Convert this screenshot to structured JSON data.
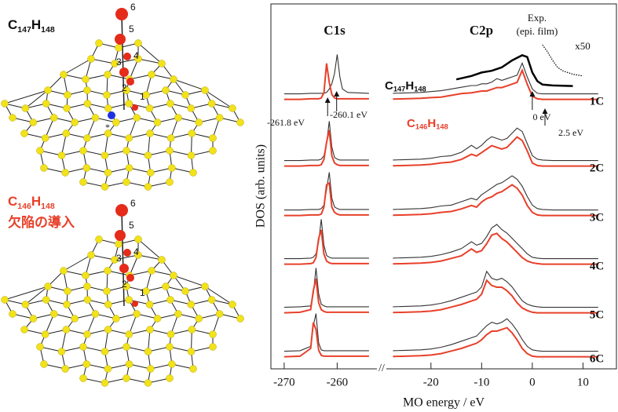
{
  "molecules": {
    "top": {
      "formula": {
        "element1": "C",
        "count1": "147",
        "element2": "H",
        "count2": "148"
      },
      "atoms": [
        1,
        2,
        3,
        4,
        5,
        6
      ],
      "defect": "*"
    },
    "bottom": {
      "formula": {
        "element1": "C",
        "count1": "146",
        "element2": "H",
        "count2": "148"
      },
      "note": "欠陥の導入",
      "atoms": [
        1,
        2,
        3,
        4,
        5,
        6
      ]
    }
  },
  "chart_data": {
    "type": "line",
    "ylabel": "DOS (arb. units)",
    "xlabel": "MO energy / eV",
    "axis_break": "//",
    "peak_labels": [
      "C1s",
      "C2p"
    ],
    "series_labels": [
      {
        "element1": "C",
        "count1": "147",
        "element2": "H",
        "count2": "148",
        "color": "#111111"
      },
      {
        "element1": "C",
        "count1": "146",
        "element2": "H",
        "count2": "148",
        "color": "#e8402a"
      }
    ],
    "x_segments": [
      {
        "xlim": [
          -272.5,
          -252.5
        ],
        "xticks": [
          -270,
          -260
        ],
        "x": [
          -270,
          -267,
          -265,
          -264.5,
          -264,
          -263.5,
          -263,
          -262.5,
          -262,
          -261.5,
          -261,
          -260.5,
          -260,
          -259.5,
          -259,
          -258,
          -254
        ]
      },
      {
        "xlim": [
          -28.8,
          16.6
        ],
        "xticks": [
          -20,
          -10,
          0,
          10
        ],
        "x": [
          -27.5,
          -22,
          -20,
          -18,
          -16,
          -14,
          -12,
          -11,
          -10,
          -9,
          -8,
          -7,
          -6,
          -5,
          -4,
          -3,
          -2,
          -1,
          0,
          1,
          2,
          4,
          13
        ]
      }
    ],
    "energy_markers": [
      {
        "value": -261.8,
        "label": "-261.8 eV"
      },
      {
        "value": -260.1,
        "label": "-260.1 eV"
      },
      {
        "value": 0,
        "label": "0 eV"
      },
      {
        "value": 2.5,
        "label": "2.5 eV"
      }
    ],
    "experiment": {
      "label": [
        "Exp.",
        "(epi. film)"
      ],
      "scale_label": "x50",
      "color": "#000000",
      "x": [
        -15,
        -12,
        -10,
        -8,
        -6,
        -4,
        -2,
        -1,
        0,
        1,
        2,
        4,
        8
      ],
      "values": [
        0.4,
        0.6,
        0.8,
        0.9,
        1.1,
        1.5,
        1.8,
        1.7,
        0.8,
        0.3,
        0.1,
        0.05,
        0.02
      ],
      "scaled_x": [
        2,
        3,
        4,
        5,
        6,
        8,
        10
      ],
      "scaled_values": [
        2.4,
        2.0,
        1.5,
        1.1,
        0.9,
        0.7,
        0.6
      ]
    },
    "panels": [
      {
        "label": "1C",
        "series": [
          {
            "color": "#333333",
            "c1s": [
              0.02,
              0.02,
              0.05,
              0.05,
              0.05,
              0.05,
              0.05,
              0.05,
              0.1,
              0.3,
              0.6,
              1.2,
              2.3,
              1.0,
              0.3,
              0.1,
              0.05
            ],
            "c2p": [
              0.05,
              0.1,
              0.15,
              0.2,
              0.3,
              0.4,
              0.5,
              0.5,
              0.6,
              0.6,
              0.7,
              0.9,
              0.8,
              0.9,
              1.0,
              1.1,
              1.8,
              1.0,
              0.3,
              0.05,
              0.02,
              0.02,
              0.02
            ]
          },
          {
            "color": "#e8402a",
            "c1s": [
              0.02,
              0.02,
              0.05,
              0.05,
              0.05,
              0.05,
              0.1,
              0.4,
              2.1,
              1.0,
              0.3,
              0.1,
              0.05,
              0.05,
              0.05,
              0.05,
              0.05
            ],
            "c2p": [
              0.03,
              0.08,
              0.12,
              0.15,
              0.25,
              0.35,
              0.4,
              0.45,
              0.5,
              0.5,
              0.6,
              0.7,
              0.7,
              0.8,
              0.9,
              1.0,
              1.7,
              0.9,
              0.2,
              0.05,
              0.02,
              0.02,
              0.02
            ]
          }
        ]
      },
      {
        "label": "2C",
        "series": [
          {
            "color": "#333333",
            "c1s": [
              0.02,
              0.02,
              0.05,
              0.05,
              0.05,
              0.05,
              0.1,
              0.3,
              1.0,
              2.3,
              0.8,
              0.2,
              0.1,
              0.05,
              0.05,
              0.05,
              0.05
            ],
            "c2p": [
              0.05,
              0.1,
              0.15,
              0.25,
              0.3,
              0.5,
              0.9,
              0.7,
              0.9,
              1.2,
              1.4,
              1.3,
              1.2,
              1.3,
              1.6,
              1.9,
              1.7,
              1.0,
              0.3,
              0.1,
              0.05,
              0.02,
              0.02
            ]
          },
          {
            "color": "#e8402a",
            "c1s": [
              0.02,
              0.02,
              0.05,
              0.05,
              0.05,
              0.05,
              0.1,
              0.4,
              1.4,
              2.1,
              0.6,
              0.2,
              0.1,
              0.05,
              0.05,
              0.05,
              0.05
            ],
            "c2p": [
              0.03,
              0.08,
              0.12,
              0.2,
              0.25,
              0.4,
              0.7,
              0.6,
              0.8,
              1.0,
              1.2,
              1.1,
              1.0,
              1.1,
              1.4,
              1.7,
              1.5,
              0.9,
              0.2,
              0.05,
              0.02,
              0.02,
              0.02
            ]
          }
        ]
      },
      {
        "label": "3C",
        "series": [
          {
            "color": "#333333",
            "c1s": [
              0.02,
              0.02,
              0.05,
              0.05,
              0.05,
              0.05,
              0.1,
              0.3,
              1.2,
              2.2,
              0.7,
              0.2,
              0.1,
              0.05,
              0.05,
              0.05,
              0.05
            ],
            "c2p": [
              0.05,
              0.1,
              0.15,
              0.25,
              0.3,
              0.5,
              0.7,
              0.6,
              0.9,
              1.1,
              1.3,
              1.5,
              1.6,
              1.8,
              2.0,
              1.8,
              1.4,
              0.8,
              0.3,
              0.1,
              0.05,
              0.02,
              0.02
            ]
          },
          {
            "color": "#e8402a",
            "c1s": [
              0.02,
              0.02,
              0.05,
              0.05,
              0.05,
              0.05,
              0.1,
              0.5,
              1.8,
              1.9,
              0.5,
              0.2,
              0.1,
              0.05,
              0.05,
              0.05,
              0.05
            ],
            "c2p": [
              0.03,
              0.08,
              0.12,
              0.2,
              0.25,
              0.4,
              0.6,
              0.5,
              0.8,
              1.0,
              1.1,
              1.3,
              1.4,
              1.6,
              1.8,
              1.6,
              1.2,
              0.6,
              0.2,
              0.05,
              0.02,
              0.02,
              0.02
            ]
          }
        ]
      },
      {
        "label": "4C",
        "series": [
          {
            "color": "#333333",
            "c1s": [
              0.02,
              0.02,
              0.05,
              0.1,
              0.3,
              1.0,
              2.3,
              0.8,
              0.2,
              0.1,
              0.05,
              0.05,
              0.05,
              0.05,
              0.05,
              0.05,
              0.05
            ],
            "c2p": [
              0.05,
              0.1,
              0.15,
              0.25,
              0.4,
              0.6,
              1.0,
              0.8,
              0.9,
              1.3,
              1.8,
              2.0,
              1.7,
              1.5,
              1.2,
              0.9,
              0.6,
              0.3,
              0.1,
              0.05,
              0.02,
              0.02,
              0.02
            ]
          },
          {
            "color": "#e8402a",
            "c1s": [
              0.02,
              0.02,
              0.05,
              0.1,
              0.4,
              1.5,
              2.0,
              0.6,
              0.2,
              0.1,
              0.05,
              0.05,
              0.05,
              0.05,
              0.05,
              0.05,
              0.05
            ],
            "c2p": [
              0.03,
              0.08,
              0.12,
              0.2,
              0.35,
              0.5,
              0.9,
              0.7,
              0.8,
              1.2,
              1.7,
              1.8,
              1.5,
              1.3,
              1.0,
              0.7,
              0.4,
              0.2,
              0.1,
              0.05,
              0.02,
              0.02,
              0.02
            ]
          }
        ]
      },
      {
        "label": "5C",
        "series": [
          {
            "color": "#333333",
            "c1s": [
              0.02,
              0.05,
              0.1,
              0.8,
              2.3,
              0.8,
              0.2,
              0.1,
              0.05,
              0.05,
              0.05,
              0.05,
              0.05,
              0.05,
              0.05,
              0.05,
              0.05
            ],
            "c2p": [
              0.05,
              0.1,
              0.15,
              0.25,
              0.4,
              0.6,
              0.8,
              0.9,
              1.2,
              2.1,
              1.7,
              1.6,
              1.7,
              1.5,
              1.2,
              0.8,
              0.4,
              0.2,
              0.1,
              0.05,
              0.02,
              0.02,
              0.02
            ]
          },
          {
            "color": "#e8402a",
            "c1s": [
              0.02,
              0.05,
              0.2,
              1.3,
              2.0,
              0.6,
              0.2,
              0.1,
              0.05,
              0.05,
              0.05,
              0.05,
              0.05,
              0.05,
              0.05,
              0.05,
              0.05
            ],
            "c2p": [
              0.03,
              0.08,
              0.12,
              0.2,
              0.35,
              0.5,
              0.7,
              0.8,
              1.1,
              1.9,
              1.6,
              1.5,
              1.5,
              1.3,
              1.0,
              0.6,
              0.3,
              0.15,
              0.05,
              0.02,
              0.02,
              0.02,
              0.02
            ]
          }
        ]
      },
      {
        "label": "6C",
        "series": [
          {
            "color": "#333333",
            "c1s": [
              0.02,
              0.05,
              0.3,
              1.5,
              2.2,
              0.5,
              0.1,
              0.05,
              0.05,
              0.05,
              0.05,
              0.05,
              0.05,
              0.05,
              0.05,
              0.05,
              0.05
            ],
            "c2p": [
              0.05,
              0.1,
              0.15,
              0.25,
              0.4,
              0.6,
              0.8,
              0.9,
              1.2,
              1.5,
              1.7,
              1.6,
              1.7,
              1.9,
              1.6,
              1.2,
              0.7,
              0.3,
              0.1,
              0.05,
              0.02,
              0.02,
              0.02
            ]
          },
          {
            "color": "#e8402a",
            "c1s": [
              0.02,
              0.05,
              0.5,
              2.0,
              1.6,
              0.4,
              0.1,
              0.05,
              0.05,
              0.05,
              0.05,
              0.05,
              0.05,
              0.05,
              0.05,
              0.05,
              0.05
            ],
            "c2p": [
              0.03,
              0.08,
              0.12,
              0.2,
              0.35,
              0.5,
              0.7,
              0.8,
              1.0,
              1.3,
              1.5,
              1.5,
              1.6,
              1.7,
              1.4,
              1.0,
              0.5,
              0.2,
              0.05,
              0.02,
              0.02,
              0.02,
              0.02
            ]
          }
        ]
      }
    ]
  }
}
